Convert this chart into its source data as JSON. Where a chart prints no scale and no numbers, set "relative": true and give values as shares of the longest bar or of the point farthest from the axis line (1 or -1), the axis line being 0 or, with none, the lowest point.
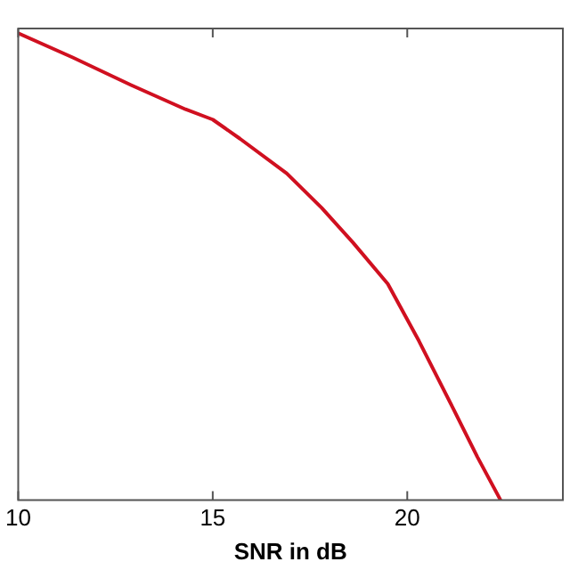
{
  "chart_data": {
    "type": "line",
    "xlabel": "SNR in dB",
    "relative": true,
    "xlim": [
      10,
      24
    ],
    "xticks": [
      10,
      15,
      20
    ],
    "grid": false,
    "legend": false,
    "marker": "none",
    "line_style": "solid",
    "series": [
      {
        "color": "#d01020",
        "x": [
          10,
          11.4,
          12.9,
          14.3,
          15,
          15.7,
          16.9,
          17.8,
          18.6,
          19.5,
          20.3,
          21.2,
          21.8,
          22.4
        ],
        "values": [
          1,
          0.948,
          0.889,
          0.837,
          0.815,
          0.774,
          0.7,
          0.626,
          0.552,
          0.463,
          0.341,
          0.193,
          0.093,
          0
        ]
      }
    ]
  }
}
